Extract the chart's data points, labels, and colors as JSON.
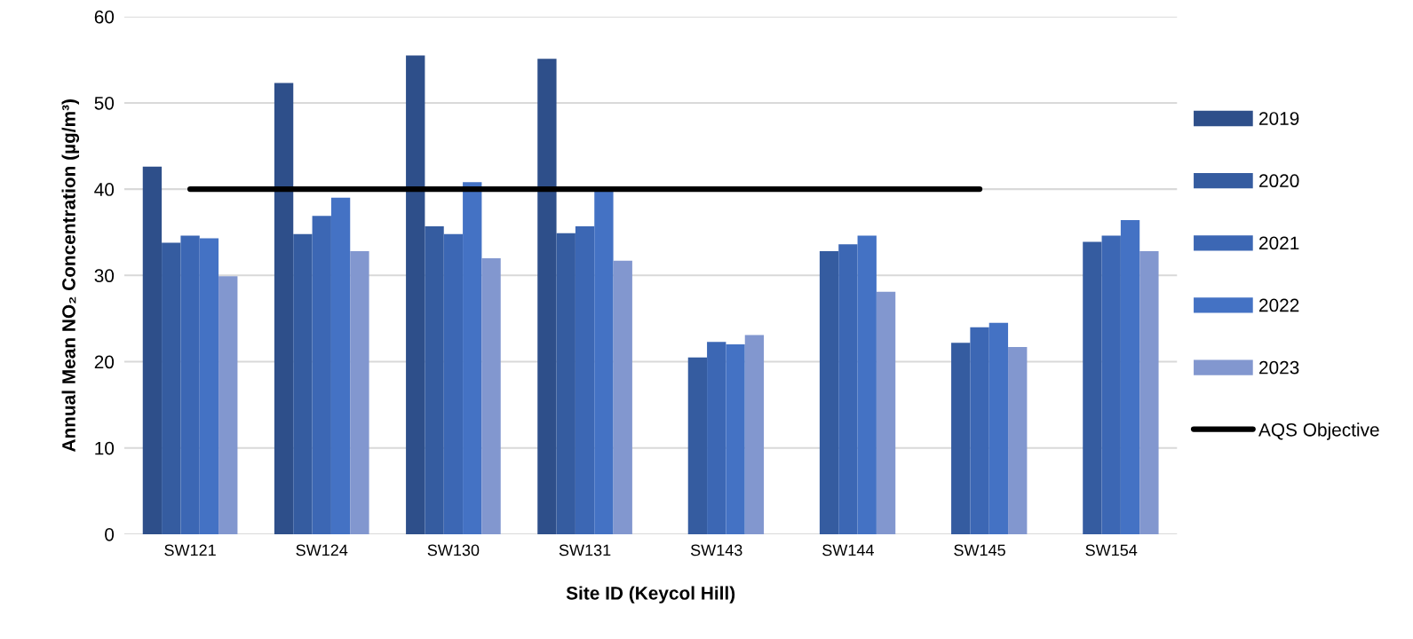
{
  "chart_data": {
    "type": "bar",
    "xlabel": "Site ID (Keycol Hill)",
    "ylabel": "Annual Mean NO₂ Concentration (µg/m³)",
    "categories": [
      "SW121",
      "SW124",
      "SW130",
      "SW131",
      "SW143",
      "SW144",
      "SW145",
      "SW154"
    ],
    "series": [
      {
        "name": "2019",
        "color": "#2e4f8a",
        "values": [
          42.6,
          52.3,
          55.5,
          55.1,
          null,
          null,
          null,
          null
        ]
      },
      {
        "name": "2020",
        "color": "#355ca0",
        "values": [
          33.8,
          34.8,
          35.7,
          34.9,
          20.5,
          32.8,
          22.2,
          33.9
        ]
      },
      {
        "name": "2021",
        "color": "#3c67b4",
        "values": [
          34.6,
          36.9,
          34.8,
          35.7,
          22.3,
          33.6,
          24.0,
          34.6
        ]
      },
      {
        "name": "2022",
        "color": "#4472c4",
        "values": [
          34.3,
          39.0,
          40.8,
          39.7,
          22.0,
          34.6,
          24.5,
          36.4
        ]
      },
      {
        "name": "2023",
        "color": "#8297cf",
        "values": [
          29.9,
          32.8,
          32.0,
          31.7,
          23.1,
          28.1,
          21.7,
          32.8
        ]
      },
      {
        "name": "AQS Objective",
        "type": "line",
        "color": "#000000",
        "values": [
          40,
          40,
          40,
          40,
          40,
          40,
          40,
          null
        ]
      }
    ],
    "ylim": [
      0,
      60
    ],
    "yticks": [
      0,
      10,
      20,
      30,
      40,
      50,
      60
    ],
    "grid": "y",
    "legend": "right",
    "marker": "none",
    "line_style": "solid"
  }
}
